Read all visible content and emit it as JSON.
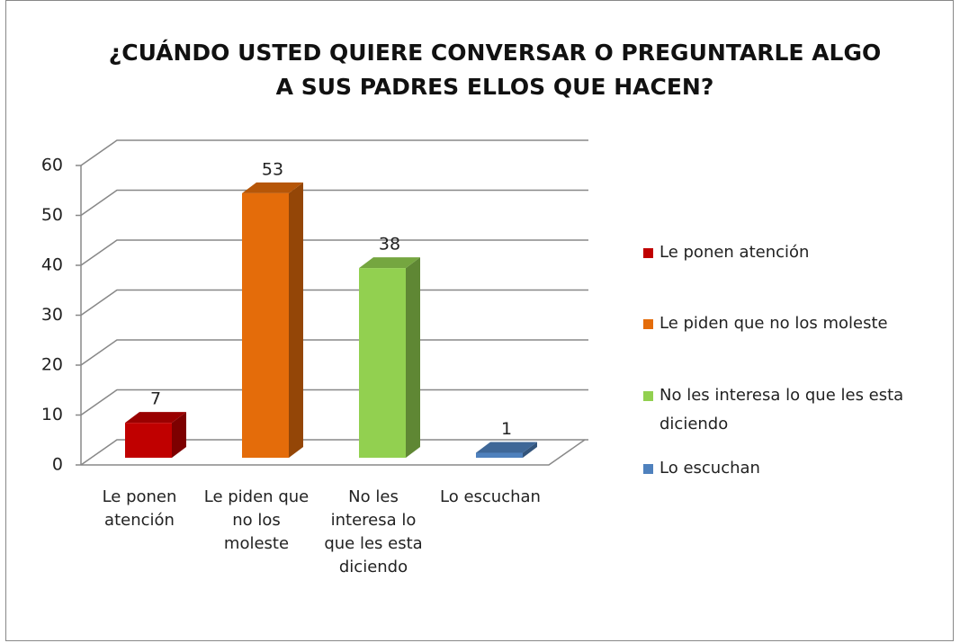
{
  "chart_data": {
    "type": "bar",
    "title": "¿CUÁNDO USTED QUIERE CONVERSAR O PREGUNTARLE ALGO A SUS PADRES ELLOS QUE HACEN?",
    "categories": [
      "Le ponen atención",
      "Le piden que no los moleste",
      "No les interesa lo que les esta diciendo",
      "Lo escuchan"
    ],
    "values": [
      7,
      53,
      38,
      1
    ],
    "colors": [
      "#c00000",
      "#e46c0a",
      "#92d050",
      "#4f81bd"
    ],
    "ylim": [
      0,
      60
    ],
    "yticks": [
      0,
      10,
      20,
      30,
      40,
      50,
      60
    ],
    "grid": true,
    "legend": "right"
  }
}
